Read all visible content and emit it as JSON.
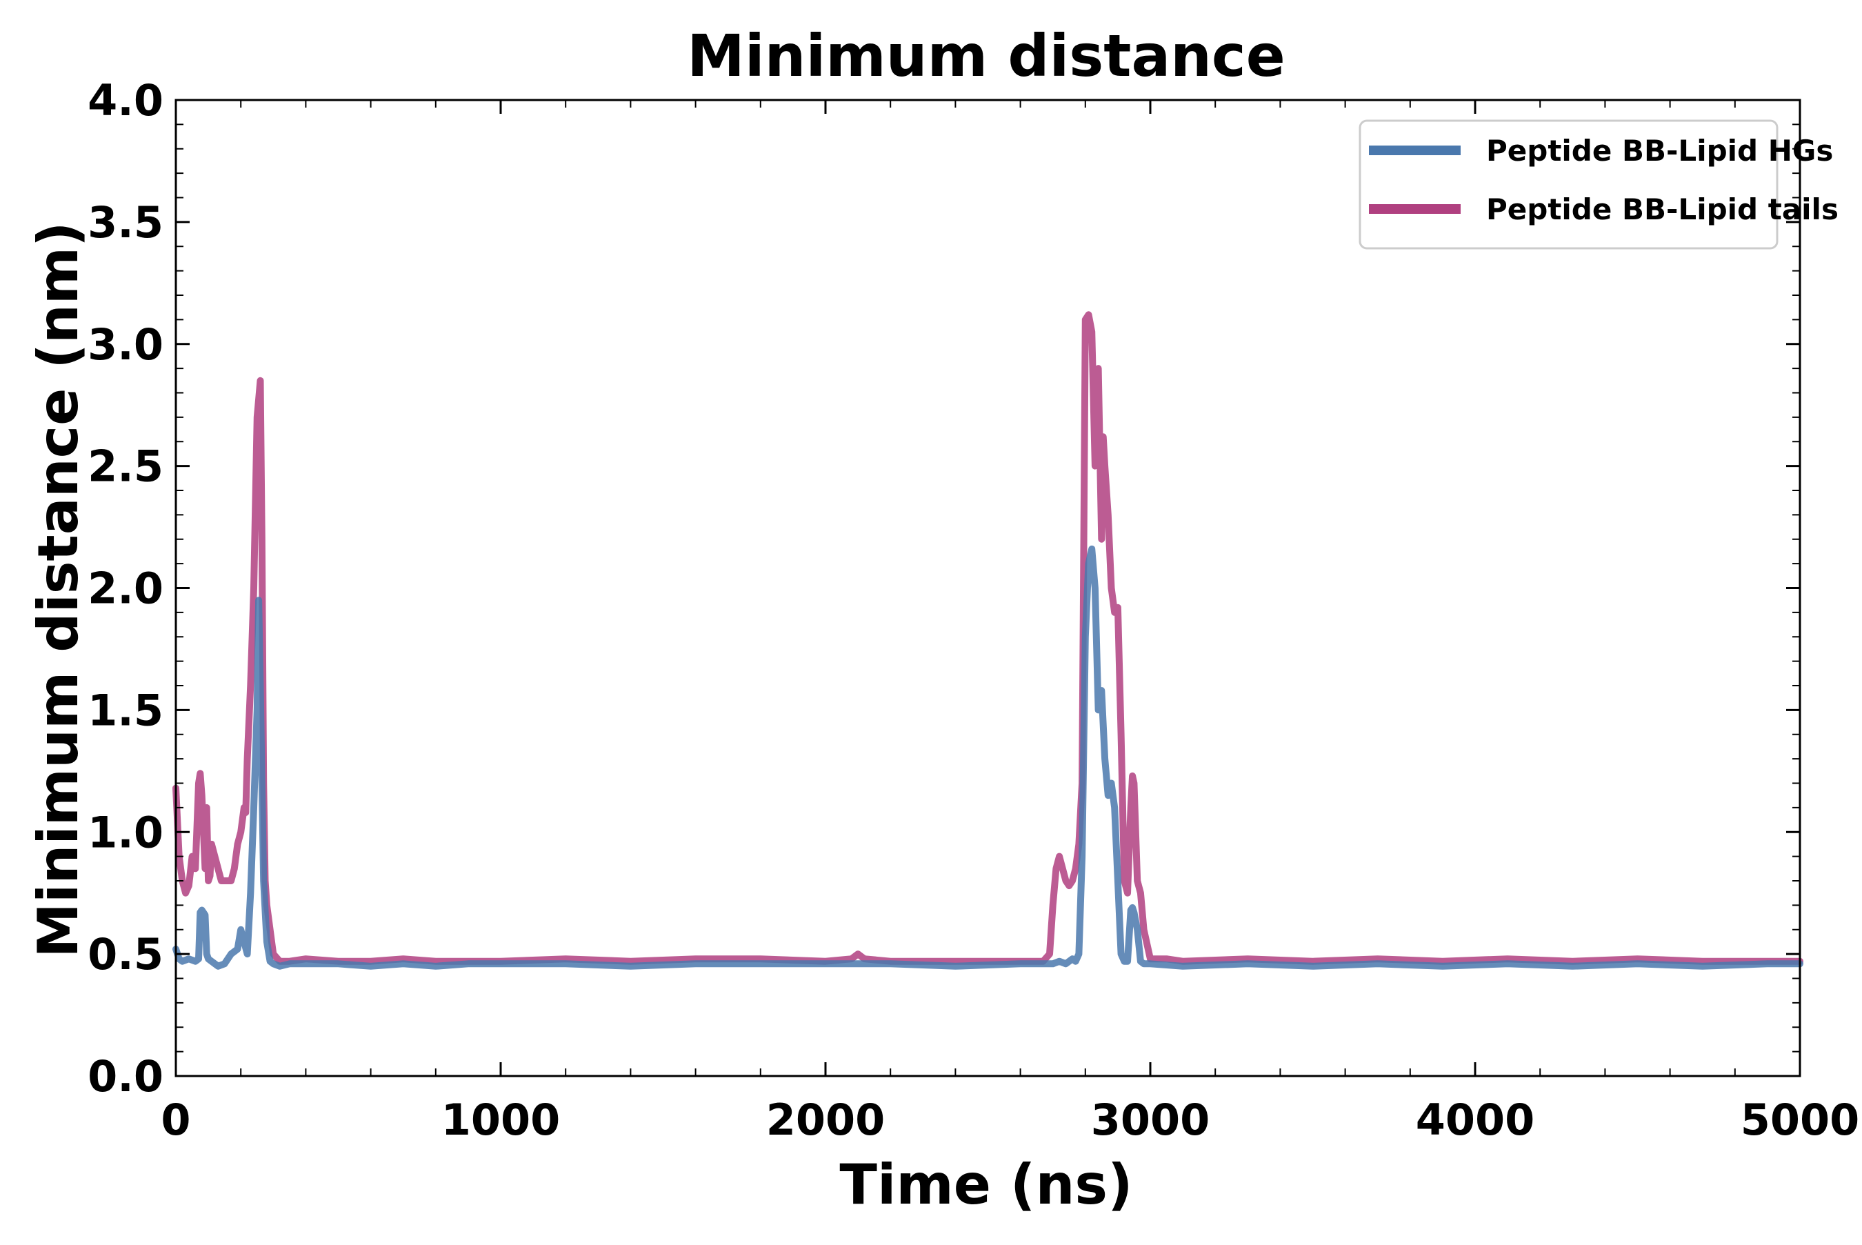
{
  "chart_data": {
    "type": "line",
    "title": "Minimum distance",
    "xlabel": "Time (ns)",
    "ylabel": "Minimum distance (nm)",
    "xlim": [
      0,
      5000
    ],
    "ylim": [
      0.0,
      4.0
    ],
    "x_ticks": [
      0,
      1000,
      2000,
      3000,
      4000,
      5000
    ],
    "x_tick_labels": [
      "0",
      "1000",
      "2000",
      "3000",
      "4000",
      "5000"
    ],
    "y_ticks": [
      0.0,
      0.5,
      1.0,
      1.5,
      2.0,
      2.5,
      3.0,
      3.5,
      4.0
    ],
    "y_tick_labels": [
      "0.0",
      "0.5",
      "1.0",
      "1.5",
      "2.0",
      "2.5",
      "3.0",
      "3.5",
      "4.0"
    ],
    "grid": false,
    "legend": "top-right",
    "series": [
      {
        "name": "Peptide BB-Lipid HGs",
        "color": "#4a78ad",
        "x": [
          0,
          10,
          20,
          40,
          60,
          70,
          75,
          80,
          90,
          95,
          100,
          110,
          130,
          150,
          170,
          190,
          200,
          210,
          220,
          230,
          240,
          250,
          255,
          260,
          265,
          270,
          280,
          290,
          300,
          320,
          350,
          400,
          500,
          600,
          700,
          800,
          900,
          1000,
          1200,
          1400,
          1600,
          1800,
          2000,
          2200,
          2400,
          2600,
          2650,
          2700,
          2720,
          2740,
          2760,
          2770,
          2780,
          2790,
          2800,
          2810,
          2820,
          2830,
          2840,
          2850,
          2860,
          2870,
          2880,
          2890,
          2900,
          2910,
          2920,
          2930,
          2940,
          2945,
          2950,
          2960,
          2970,
          2980,
          3000,
          3100,
          3300,
          3500,
          3700,
          3900,
          4100,
          4300,
          4500,
          4700,
          4900,
          5000
        ],
        "values": [
          0.52,
          0.48,
          0.47,
          0.48,
          0.47,
          0.48,
          0.67,
          0.68,
          0.66,
          0.5,
          0.48,
          0.47,
          0.45,
          0.46,
          0.5,
          0.52,
          0.6,
          0.55,
          0.5,
          0.75,
          1.1,
          1.5,
          1.95,
          1.6,
          1.2,
          0.8,
          0.55,
          0.47,
          0.46,
          0.45,
          0.46,
          0.46,
          0.46,
          0.45,
          0.46,
          0.45,
          0.46,
          0.46,
          0.46,
          0.45,
          0.46,
          0.46,
          0.46,
          0.46,
          0.45,
          0.46,
          0.46,
          0.46,
          0.47,
          0.46,
          0.48,
          0.47,
          0.5,
          0.9,
          1.8,
          2.1,
          2.16,
          2.0,
          1.5,
          1.58,
          1.3,
          1.15,
          1.2,
          1.1,
          0.8,
          0.5,
          0.47,
          0.47,
          0.68,
          0.69,
          0.67,
          0.6,
          0.47,
          0.46,
          0.46,
          0.45,
          0.46,
          0.45,
          0.46,
          0.45,
          0.46,
          0.45,
          0.46,
          0.45,
          0.46,
          0.46
        ]
      },
      {
        "name": "Peptide BB-Lipid tails",
        "color": "#b04080",
        "x": [
          0,
          10,
          20,
          30,
          40,
          50,
          60,
          70,
          75,
          80,
          90,
          95,
          100,
          105,
          110,
          120,
          130,
          140,
          150,
          170,
          180,
          190,
          200,
          210,
          215,
          220,
          230,
          240,
          250,
          260,
          265,
          270,
          275,
          280,
          290,
          300,
          320,
          350,
          400,
          500,
          600,
          700,
          800,
          900,
          1000,
          1200,
          1400,
          1600,
          1800,
          2000,
          2080,
          2100,
          2120,
          2200,
          2400,
          2600,
          2650,
          2670,
          2690,
          2700,
          2710,
          2720,
          2730,
          2740,
          2750,
          2760,
          2770,
          2780,
          2790,
          2800,
          2810,
          2820,
          2830,
          2840,
          2850,
          2855,
          2860,
          2870,
          2880,
          2890,
          2900,
          2910,
          2920,
          2930,
          2940,
          2945,
          2950,
          2960,
          2970,
          2980,
          3000,
          3050,
          3100,
          3300,
          3500,
          3700,
          3900,
          4100,
          4300,
          4500,
          4700,
          4900,
          5000
        ],
        "values": [
          1.18,
          0.9,
          0.8,
          0.75,
          0.78,
          0.9,
          0.85,
          1.2,
          1.24,
          1.15,
          0.85,
          1.1,
          0.8,
          0.82,
          0.95,
          0.9,
          0.85,
          0.8,
          0.8,
          0.8,
          0.85,
          0.95,
          1.0,
          1.1,
          1.08,
          1.3,
          1.6,
          2.0,
          2.7,
          2.85,
          2.2,
          1.2,
          0.8,
          0.7,
          0.6,
          0.5,
          0.47,
          0.47,
          0.48,
          0.47,
          0.47,
          0.48,
          0.47,
          0.47,
          0.47,
          0.48,
          0.47,
          0.48,
          0.48,
          0.47,
          0.48,
          0.5,
          0.48,
          0.47,
          0.47,
          0.47,
          0.47,
          0.47,
          0.5,
          0.7,
          0.85,
          0.9,
          0.85,
          0.8,
          0.78,
          0.8,
          0.85,
          0.95,
          1.2,
          3.1,
          3.12,
          3.05,
          2.5,
          2.9,
          2.2,
          2.62,
          2.5,
          2.3,
          2.0,
          1.9,
          1.92,
          1.4,
          0.8,
          0.75,
          1.1,
          1.23,
          1.2,
          0.8,
          0.75,
          0.6,
          0.48,
          0.48,
          0.47,
          0.48,
          0.47,
          0.48,
          0.47,
          0.48,
          0.47,
          0.48,
          0.47,
          0.47,
          0.47
        ]
      }
    ]
  }
}
